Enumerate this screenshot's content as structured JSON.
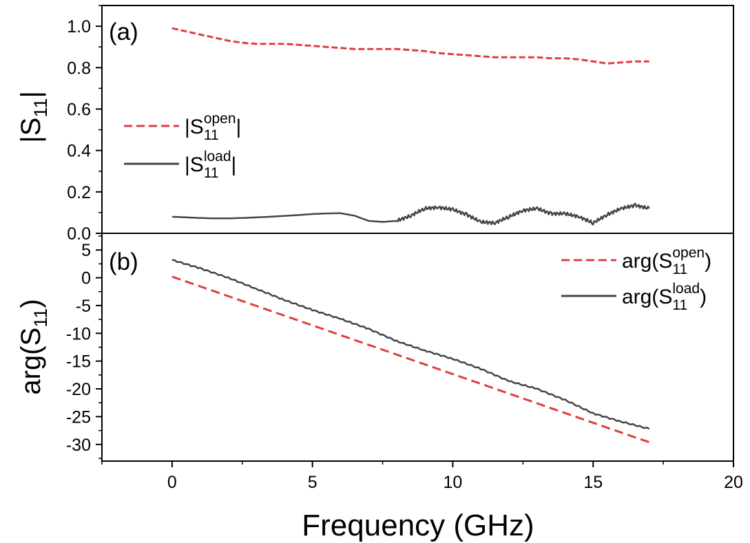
{
  "chart_data": [
    {
      "type": "line",
      "panel_label": "(a)",
      "ylabel": {
        "main": "|S",
        "sub": "11",
        "tail": "|"
      },
      "xlim": [
        -2.5,
        20
      ],
      "ylim": [
        0,
        1.1
      ],
      "x_ticks": [
        "0",
        "5",
        "10",
        "15",
        "20"
      ],
      "y_ticks": [
        "0.0",
        "0.2",
        "0.4",
        "0.6",
        "0.8",
        "1.0"
      ],
      "grid": false,
      "legend_placement": "center-left",
      "series": [
        {
          "name": "|S11open|",
          "legend": {
            "pre": "|S",
            "sup": "open",
            "sub": "11",
            "post": "|"
          },
          "style": "dashed",
          "color": "#e03c3c",
          "x": [
            0,
            0.5,
            1,
            1.5,
            2,
            2.5,
            3,
            3.5,
            4,
            4.5,
            5,
            5.5,
            6,
            6.5,
            7,
            7.5,
            8,
            8.5,
            9,
            9.5,
            10,
            10.5,
            11,
            11.5,
            12,
            12.5,
            13,
            13.5,
            14,
            14.5,
            15,
            15.5,
            16,
            16.5,
            17
          ],
          "y": [
            0.99,
            0.975,
            0.96,
            0.945,
            0.93,
            0.92,
            0.915,
            0.915,
            0.915,
            0.91,
            0.905,
            0.9,
            0.895,
            0.89,
            0.89,
            0.89,
            0.89,
            0.885,
            0.88,
            0.87,
            0.865,
            0.86,
            0.855,
            0.85,
            0.85,
            0.85,
            0.85,
            0.845,
            0.845,
            0.84,
            0.83,
            0.82,
            0.825,
            0.83,
            0.83
          ]
        },
        {
          "name": "|S11load|",
          "legend": {
            "pre": "|S",
            "sup": "load",
            "sub": "11",
            "post": "|"
          },
          "style": "solid",
          "color": "#444444",
          "x": [
            0,
            0.5,
            1,
            1.5,
            2,
            2.5,
            3,
            3.5,
            4,
            4.5,
            5,
            5.5,
            6,
            6.5,
            7,
            7.5,
            8,
            8.5,
            9,
            9.5,
            10,
            10.5,
            11,
            11.5,
            12,
            12.5,
            13,
            13.5,
            14,
            14.5,
            15,
            15.5,
            16,
            16.5,
            17
          ],
          "y": [
            0.08,
            0.077,
            0.074,
            0.072,
            0.072,
            0.074,
            0.077,
            0.08,
            0.084,
            0.088,
            0.093,
            0.096,
            0.097,
            0.085,
            0.06,
            0.055,
            0.06,
            0.085,
            0.12,
            0.125,
            0.115,
            0.09,
            0.055,
            0.05,
            0.08,
            0.11,
            0.12,
            0.095,
            0.095,
            0.08,
            0.05,
            0.09,
            0.12,
            0.135,
            0.12
          ]
        }
      ]
    },
    {
      "type": "line",
      "panel_label": "(b)",
      "ylabel": {
        "main": "arg(S",
        "sub": "11",
        "tail": ")"
      },
      "xlabel": "Frequency (GHz)",
      "xlim": [
        -2.5,
        20
      ],
      "ylim": [
        -33,
        8
      ],
      "x_ticks": [
        "0",
        "5",
        "10",
        "15",
        "20"
      ],
      "y_ticks": [
        "5",
        "0",
        "-5",
        "-10",
        "-15",
        "-20",
        "-25",
        "-30"
      ],
      "grid": false,
      "legend_placement": "top-right",
      "series": [
        {
          "name": "arg(S11open)",
          "legend": {
            "pre": "arg(S",
            "sup": "open",
            "sub": "11",
            "post": ")"
          },
          "style": "dashed",
          "color": "#e03c3c",
          "x": [
            0,
            17
          ],
          "y": [
            0.2,
            -29.6
          ]
        },
        {
          "name": "arg(S11load)",
          "legend": {
            "pre": "arg(S",
            "sup": "load",
            "sub": "11",
            "post": ")"
          },
          "style": "solid",
          "color": "#444444",
          "x": [
            0,
            1,
            2,
            3,
            4,
            5,
            6,
            7,
            8,
            9,
            10,
            11,
            12,
            13,
            14,
            15,
            16,
            17
          ],
          "y": [
            3.2,
            1.7,
            0,
            -2,
            -4,
            -5.8,
            -7.4,
            -9.2,
            -11.4,
            -13.1,
            -14.6,
            -16.4,
            -18.6,
            -20,
            -22,
            -24.4,
            -25.9,
            -27.2
          ]
        }
      ]
    }
  ]
}
